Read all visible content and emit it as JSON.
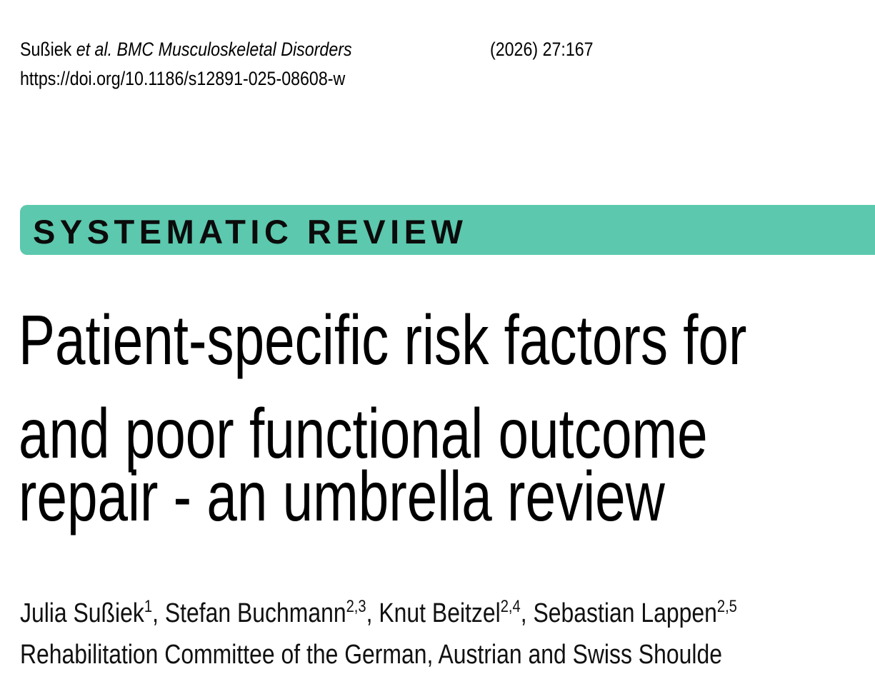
{
  "header": {
    "author_short": "Sußiek",
    "etal": "et al.",
    "journal": "BMC Musculoskeletal Disorders",
    "volume": "(2026) 27:167",
    "doi": "https://doi.org/10.1186/s12891-025-08608-w"
  },
  "article_type": "SYSTEMATIC REVIEW",
  "accent_color": "#5cc8ae",
  "title_lines": [
    "Patient-specific risk factors for",
    "and poor functional outcome",
    "repair - an umbrella review"
  ],
  "authors": [
    {
      "name": "Julia Sußiek",
      "aff": "1"
    },
    {
      "name": "Stefan Buchmann",
      "aff": "2,3"
    },
    {
      "name": "Knut Beitzel",
      "aff": "2,4"
    },
    {
      "name": "Sebastian Lappen",
      "aff": "2,5"
    }
  ],
  "group": "Rehabilitation Committee of the German, Austrian and Swiss Shoulde"
}
